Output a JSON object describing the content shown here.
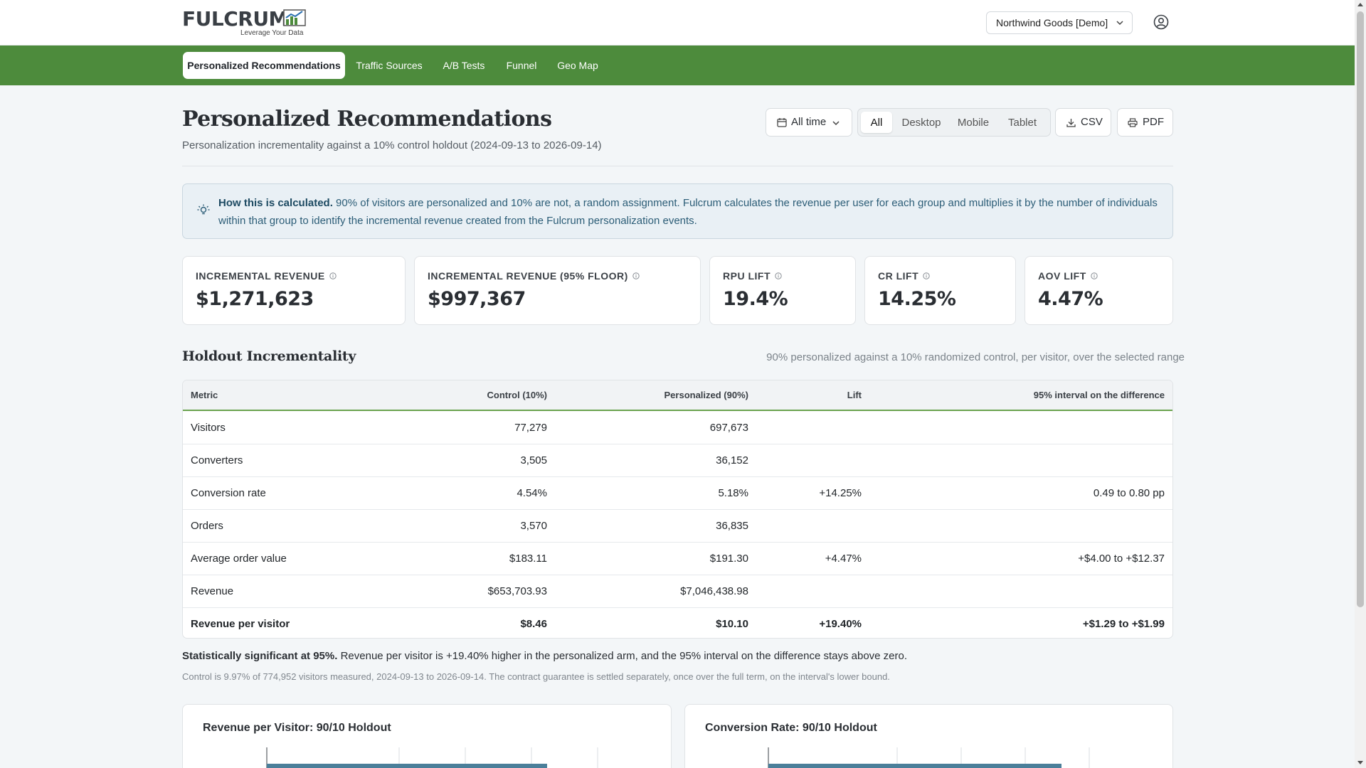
{
  "brand": {
    "name": "FULCRUM",
    "tagline": "Leverage Your Data",
    "accent": "#4d8b3c"
  },
  "header": {
    "workspace": "Northwind Goods [Demo]",
    "workspace_icon": "chevron-down-icon",
    "user_icon": "user-circle-icon"
  },
  "nav": {
    "tabs": [
      {
        "label": "Personalized Recommendations",
        "active": true
      },
      {
        "label": "Traffic Sources"
      },
      {
        "label": "A/B Tests"
      },
      {
        "label": "Funnel"
      },
      {
        "label": "Geo Map"
      }
    ]
  },
  "page": {
    "title": "Personalized Recommendations",
    "subtitle": "Personalization incrementality against a 10% control holdout (2024-09-13 to 2026-09-14)"
  },
  "controls": {
    "date_range": "All time",
    "devices": [
      "All",
      "Desktop",
      "Mobile",
      "Tablet"
    ],
    "device_selected": "All",
    "csv": "CSV",
    "pdf": "PDF"
  },
  "info": {
    "lead": "How this is calculated.",
    "body": " 90% of visitors are personalized and 10% are not, a random assignment. Fulcrum calculates the revenue per user for each group and multiplies it by the number of individuals within that group to identify the incremental revenue created from the Fulcrum personalization events."
  },
  "kpis": [
    {
      "label": "INCREMENTAL REVENUE",
      "value": "$1,271,623"
    },
    {
      "label": "INCREMENTAL REVENUE (95% FLOOR)",
      "value": "$997,367"
    },
    {
      "label": "RPU LIFT",
      "value": "19.4%"
    },
    {
      "label": "CR LIFT",
      "value": "14.25%"
    },
    {
      "label": "AOV LIFT",
      "value": "4.47%"
    }
  ],
  "holdout": {
    "title": "Holdout Incrementality",
    "note": "90% personalized against a 10% randomized control, per visitor, over the selected range",
    "columns": [
      "Metric",
      "Control (10%)",
      "Personalized (90%)",
      "Lift",
      "95% interval on the difference"
    ],
    "rows": [
      [
        "Visitors",
        "77,279",
        "697,673",
        "",
        ""
      ],
      [
        "Converters",
        "3,505",
        "36,152",
        "",
        ""
      ],
      [
        "Conversion rate",
        "4.54%",
        "5.18%",
        "+14.25%",
        "0.49 to 0.80 pp"
      ],
      [
        "Orders",
        "3,570",
        "36,835",
        "",
        ""
      ],
      [
        "Average order value",
        "$183.11",
        "$191.30",
        "+4.47%",
        "+$4.00 to +$12.37"
      ],
      [
        "Revenue",
        "$653,703.93",
        "$7,046,438.98",
        "",
        ""
      ],
      [
        "Revenue per visitor",
        "$8.46",
        "$10.10",
        "+19.40%",
        "+$1.29 to +$1.99"
      ]
    ],
    "sig_lead": "Statistically significant at 95%.",
    "sig_body": " Revenue per visitor is +19.40% higher in the personalized arm, and the 95% interval on the difference stays above zero.",
    "fine": "Control is 9.97% of 774,952 visitors measured, 2024-09-13 to 2026-09-14. The contract guarantee is settled separately, once over the full term, on the interval's lower bound."
  },
  "charts": {
    "rpv_title": "Revenue per Visitor: 90/10 Holdout",
    "cr_title": "Conversion Rate: 90/10 Holdout"
  }
}
